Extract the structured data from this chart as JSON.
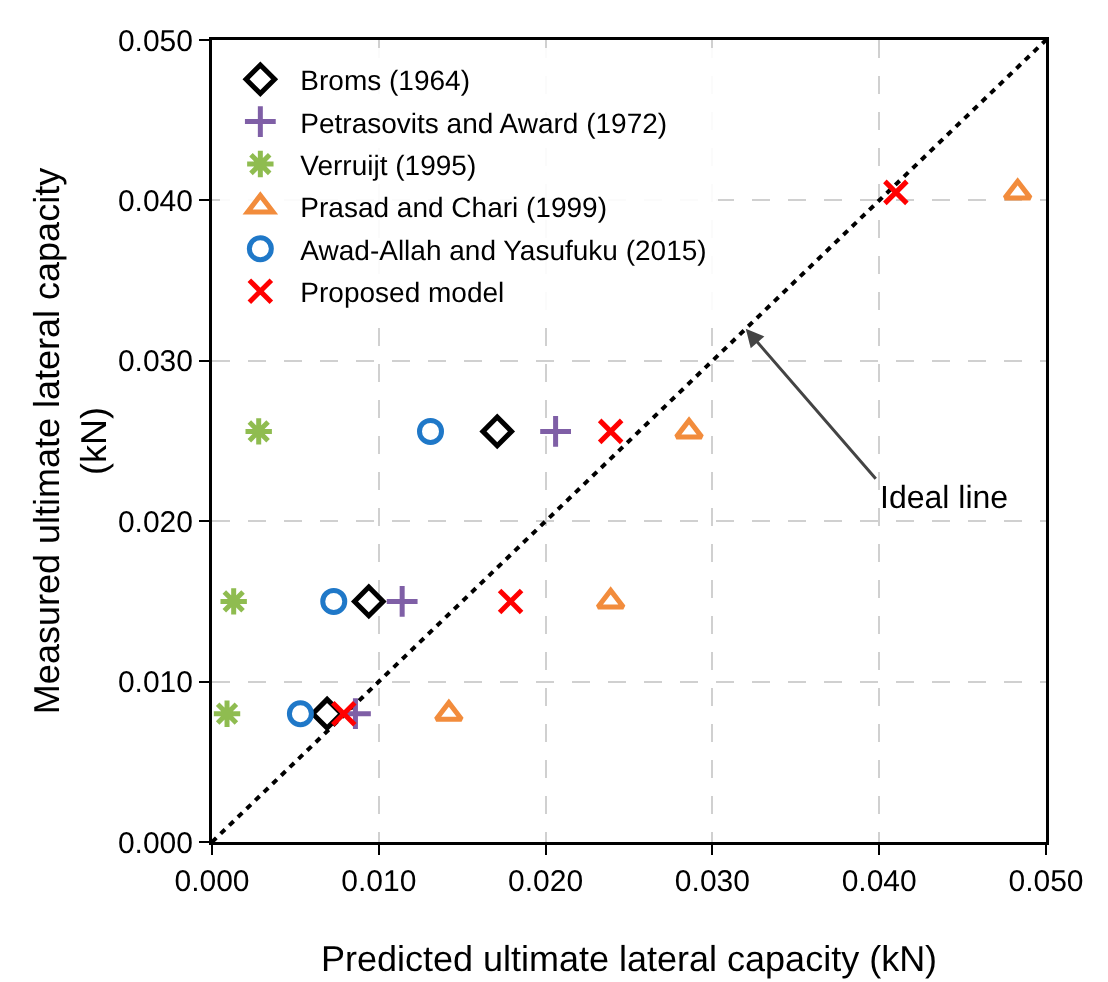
{
  "chart_data": {
    "type": "scatter",
    "xlabel": "Predicted ultimate lateral capacity (kN)",
    "ylabel": "Measured ultimate lateral capacity (kN)",
    "xlim": [
      0,
      0.05
    ],
    "ylim": [
      0,
      0.05
    ],
    "xticks": [
      {
        "value": 0,
        "label": "0.000"
      },
      {
        "value": 0.01,
        "label": "0.010"
      },
      {
        "value": 0.02,
        "label": "0.020"
      },
      {
        "value": 0.03,
        "label": "0.030"
      },
      {
        "value": 0.04,
        "label": "0.040"
      },
      {
        "value": 0.05,
        "label": "0.050"
      }
    ],
    "yticks": [
      {
        "value": 0,
        "label": "0.000"
      },
      {
        "value": 0.01,
        "label": "0.010"
      },
      {
        "value": 0.02,
        "label": "0.020"
      },
      {
        "value": 0.03,
        "label": "0.030"
      },
      {
        "value": 0.04,
        "label": "0.040"
      },
      {
        "value": 0.05,
        "label": "0.050"
      }
    ],
    "grid": true,
    "legend": "top left",
    "series": [
      {
        "name": "Broms (1964)",
        "color": "#000000",
        "marker": "diamond",
        "x": [
          0.0171,
          0.0094,
          0.0069
        ],
        "values": [
          0.0256,
          0.015,
          0.008
        ]
      },
      {
        "name": "Petrasovits and Award (1972)",
        "color": "#7f5fa6",
        "marker": "plus",
        "x": [
          0.0206,
          0.0114,
          0.0086
        ],
        "values": [
          0.0256,
          0.015,
          0.008
        ]
      },
      {
        "name": "Verruijt (1995)",
        "color": "#8fbc50",
        "marker": "cross",
        "x": [
          0.0028,
          0.0013,
          0.0009
        ],
        "values": [
          0.0256,
          0.015,
          0.008
        ]
      },
      {
        "name": "Prasad and Chari (1999)",
        "color": "#f28c3c",
        "marker": "triangle",
        "x": [
          0.0483,
          0.0286,
          0.0239,
          0.0142
        ],
        "values": [
          0.0405,
          0.0256,
          0.015,
          0.008
        ]
      },
      {
        "name": "Awad-Allah and Yasufuku (2015)",
        "color": "#1f78c8",
        "marker": "circle",
        "x": [
          0.0131,
          0.0073,
          0.0053
        ],
        "values": [
          0.0256,
          0.015,
          0.008
        ]
      },
      {
        "name": "Proposed model",
        "color": "#ff0000",
        "marker": "x",
        "x": [
          0.041,
          0.0239,
          0.0179,
          0.0079
        ],
        "values": [
          0.0405,
          0.0256,
          0.015,
          0.008
        ]
      },
      {
        "type": "line",
        "color": "#000000",
        "line_style": "dotted",
        "marker": "none",
        "x": [
          0,
          0.05
        ],
        "values": [
          0,
          0.05
        ]
      }
    ],
    "annotations": [
      {
        "text": "Ideal line",
        "x": 0.032,
        "y": 0.032
      }
    ]
  }
}
